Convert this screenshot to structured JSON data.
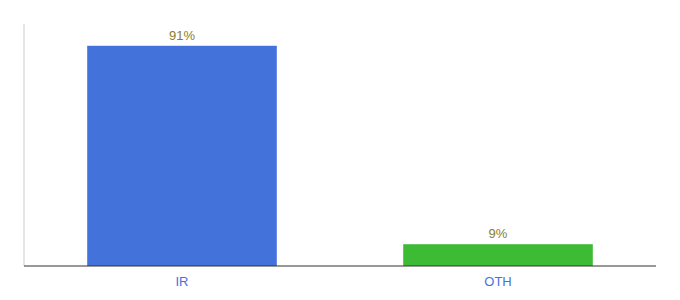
{
  "chart_data": {
    "type": "bar",
    "categories": [
      "IR",
      "OTH"
    ],
    "values": [
      91,
      9
    ],
    "value_labels": [
      "91%",
      "9%"
    ],
    "colors": [
      "#4472db",
      "#3dbb35"
    ],
    "ylim": [
      0,
      100
    ],
    "data_labels": true,
    "tick_labels": "x",
    "grid": false
  }
}
